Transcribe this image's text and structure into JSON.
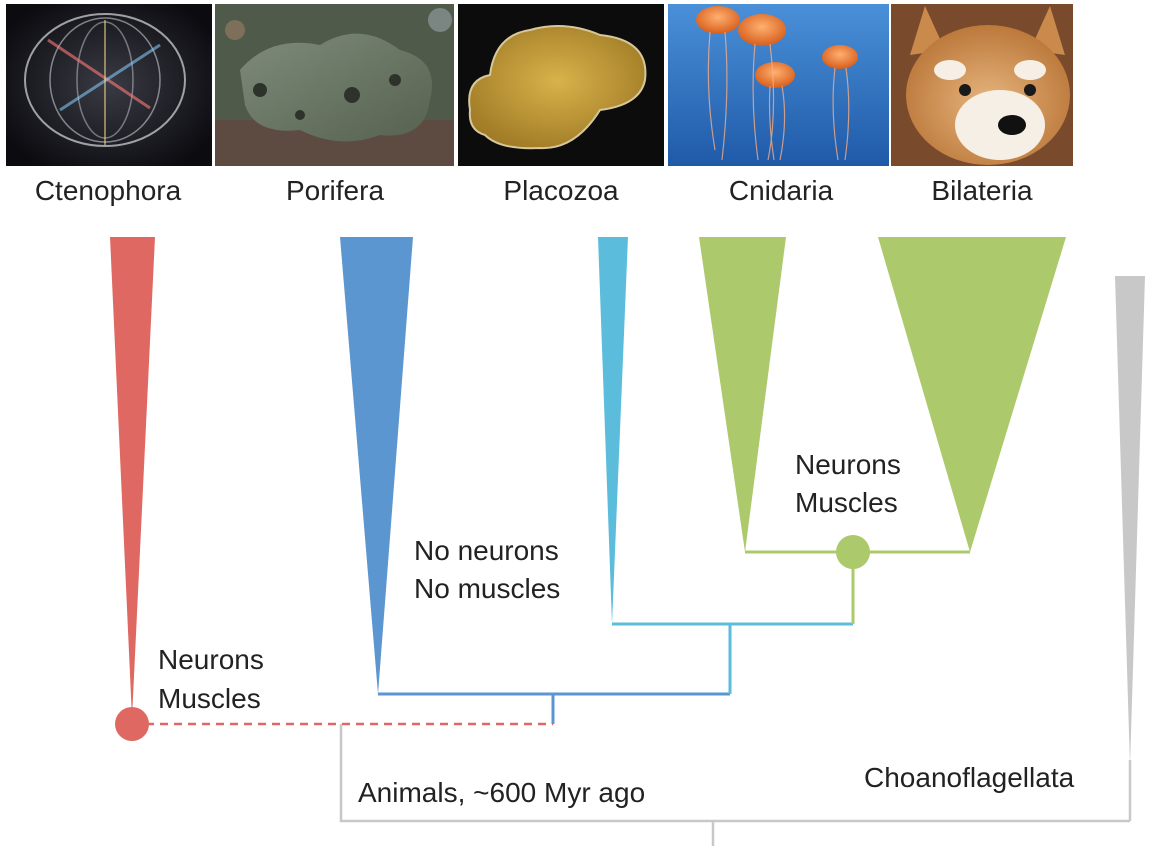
{
  "colors": {
    "ctenophora": "#e06862",
    "porifera": "#5b96d0",
    "placozoa": "#5bbcdc",
    "cnidaria_bilateria": "#acc96b",
    "choanoflagellata": "#c8c8c8",
    "text": "#222222"
  },
  "photos": [
    {
      "icon": "comb-jelly-photo"
    },
    {
      "icon": "sea-sponge-photo"
    },
    {
      "icon": "trichoplax-photo"
    },
    {
      "icon": "jellyfish-photo"
    },
    {
      "icon": "shiba-dog-photo"
    }
  ],
  "taxa": {
    "ctenophora": "Ctenophora",
    "porifera": "Porifera",
    "placozoa": "Placozoa",
    "cnidaria": "Cnidaria",
    "bilateria": "Bilateria",
    "choanoflagellata": "Choanoflagellata"
  },
  "annotations": {
    "cteno_line1": "Neurons",
    "cteno_line2": "Muscles",
    "porifera_line1": "No neurons",
    "porifera_line2": "No muscles",
    "cnid_line1": "Neurons",
    "cnid_line2": "Muscles",
    "root": "Animals, ~600 Myr ago"
  }
}
